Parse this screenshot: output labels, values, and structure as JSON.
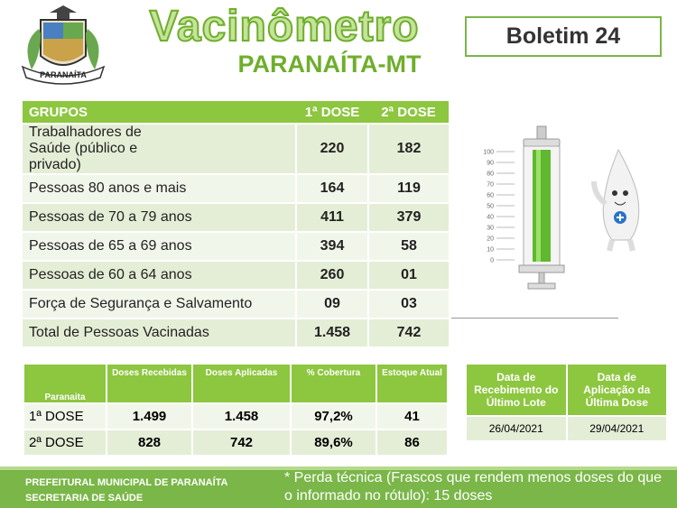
{
  "header": {
    "logo_text": "PARANAÍTA",
    "title": "Vacinômetro",
    "subtitle": "PARANAÍTA-MT",
    "bulletin": "Boletim 24"
  },
  "groups_table": {
    "columns": [
      "GRUPOS",
      "1ª DOSE",
      "2ª DOSE"
    ],
    "rows": [
      [
        "Trabalhadores de Saúde (público e privado)",
        "220",
        "182"
      ],
      [
        "Pessoas 80 anos e mais",
        "164",
        "119"
      ],
      [
        "Pessoas de 70 a 79 anos",
        "411",
        "379"
      ],
      [
        "Pessoas de 65 a 69 anos",
        "394",
        "58"
      ],
      [
        "Pessoas de 60 a 64 anos",
        "260",
        "01"
      ],
      [
        "Força de Segurança e Salvamento",
        "09",
        "03"
      ],
      [
        "Total de Pessoas Vacinadas",
        "1.458",
        "742"
      ]
    ]
  },
  "syringe": {
    "ticks": [
      100,
      90,
      80,
      70,
      60,
      50,
      40,
      30,
      20,
      10,
      0
    ]
  },
  "stock_table": {
    "columns": [
      "Paranaita",
      "Doses Recebidas",
      "Doses Aplicadas",
      "% Cobertura",
      "Estoque Atual"
    ],
    "rows": [
      [
        "1ª DOSE",
        "1.499",
        "1.458",
        "97,2%",
        "41"
      ],
      [
        "2ª DOSE",
        "828",
        "742",
        "89,6%",
        "86"
      ]
    ]
  },
  "dates_table": {
    "columns": [
      "Data de Recebimento do Último Lote",
      "Data de Aplicação da Última Dose"
    ],
    "rows": [
      [
        "26/04/2021",
        "29/04/2021"
      ]
    ]
  },
  "footer": {
    "organization": [
      "PREFEITURAL MUNICIPAL DE PARANAÍTA",
      "SECRETARIA DE SAÚDE"
    ],
    "note": "* Perda técnica (Frascos que rendem menos doses do que o informado no rótulo): 15 doses"
  }
}
